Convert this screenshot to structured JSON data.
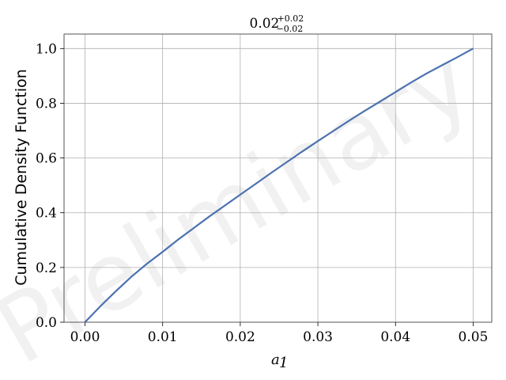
{
  "chart_data": {
    "type": "line",
    "title": {
      "value": "0.02",
      "upper": "+0.02",
      "lower": "−0.02"
    },
    "xlabel": {
      "symbol": "a",
      "subscript": "1"
    },
    "ylabel": "Cumulative Density Function",
    "xlim": [
      -0.0027,
      0.0524
    ],
    "ylim": [
      0.0,
      1.053
    ],
    "xticks": [
      0.0,
      0.01,
      0.02,
      0.03,
      0.04,
      0.05
    ],
    "xtick_labels": [
      "0.00",
      "0.01",
      "0.02",
      "0.03",
      "0.04",
      "0.05"
    ],
    "yticks": [
      0.0,
      0.2,
      0.4,
      0.6,
      0.8,
      1.0
    ],
    "ytick_labels": [
      "0.0",
      "0.2",
      "0.4",
      "0.6",
      "0.8",
      "1.0"
    ],
    "grid": true,
    "watermark": "Preliminary",
    "series": [
      {
        "color": "#4c72b0",
        "x": [
          0.0,
          0.002,
          0.004,
          0.006,
          0.008,
          0.01,
          0.012,
          0.014,
          0.016,
          0.018,
          0.02,
          0.022,
          0.024,
          0.026,
          0.028,
          0.03,
          0.032,
          0.034,
          0.036,
          0.038,
          0.04,
          0.042,
          0.044,
          0.046,
          0.048,
          0.05
        ],
        "y": [
          0.0,
          0.059,
          0.114,
          0.167,
          0.214,
          0.257,
          0.302,
          0.344,
          0.386,
          0.426,
          0.466,
          0.506,
          0.546,
          0.585,
          0.624,
          0.662,
          0.699,
          0.736,
          0.772,
          0.806,
          0.841,
          0.876,
          0.909,
          0.939,
          0.969,
          1.0
        ]
      }
    ]
  }
}
